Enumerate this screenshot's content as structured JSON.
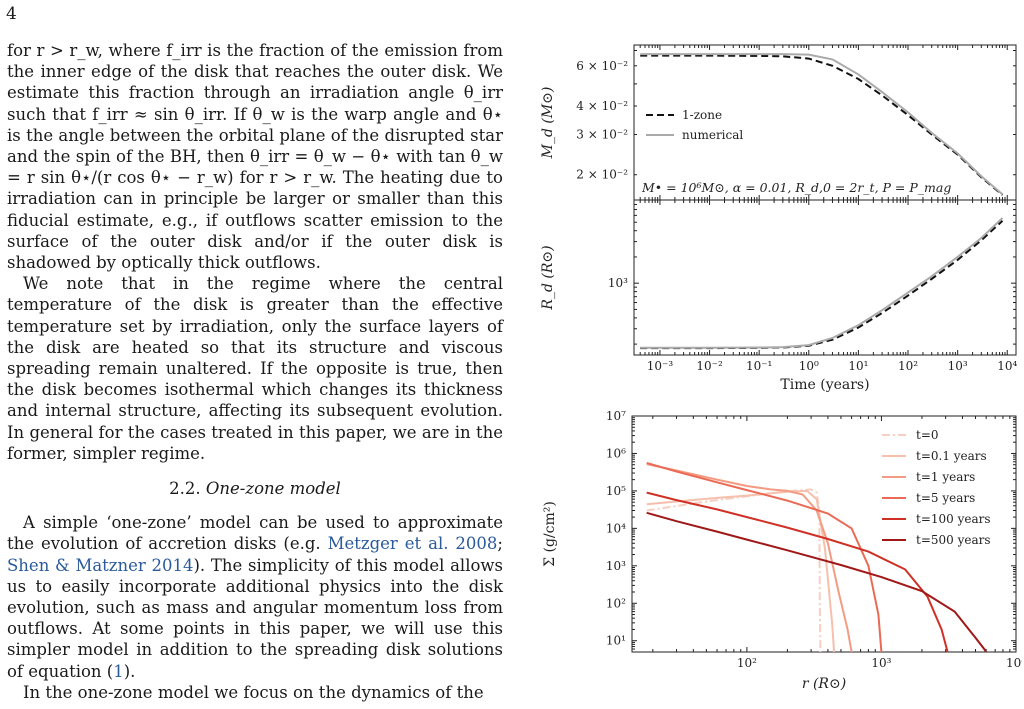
{
  "page_number": "4",
  "left_column": {
    "para1": "for r > r_w, where f_irr is the fraction of the emission from the inner edge of the disk that reaches the outer disk. We estimate this fraction through an irradiation angle θ_irr such that f_irr ≈ sin θ_irr. If θ_w is the warp angle and θ⋆ is the angle between the orbital plane of the disrupted star and the spin of the BH, then θ_irr = θ_w − θ⋆ with tan θ_w = r sin θ⋆/(r cos θ⋆ − r_w) for r > r_w. The heating due to irradiation can in principle be larger or smaller than this fiducial estimate, e.g., if outflows scatter emission to the surface of the outer disk and/or if the outer disk is shadowed by optically thick outflows.",
    "para2": "We note that in the regime where the central temperature of the disk is greater than the effective temperature set by irradiation, only the surface layers of the disk are heated so that its structure and viscous spreading remain unaltered. If the opposite is true, then the disk becomes isothermal which changes its thickness and internal structure, affecting its subsequent evolution. In general for the cases treated in this paper, we are in the former, simpler regime.",
    "section_number": "2.2.",
    "section_title": "One-zone model",
    "para3_start": "A simple ‘one-zone’ model can be used to approximate the evolution of accretion disks (e.g.",
    "cite1": "Metzger et al. 2008",
    "cite_sep": ";",
    "cite2": "Shen & Matzner 2014",
    "para3_mid": "). The simplicity of this model allows us to easily incorporate additional physics into the disk evolution, such as mass and angular momentum loss from outflows. At some points in this paper, we will use this simpler model in addition to the spreading disk solutions of equation (",
    "eq_ref": "1",
    "para3_end": ").",
    "para4": "In the one-zone model we focus on the dynamics of the"
  },
  "chart_data": [
    {
      "type": "line",
      "panel": "top",
      "ylabel": "M_d (M⊙)",
      "yscale": "log",
      "ylim": [
        0.0155,
        0.074
      ],
      "yticks": [
        "2 × 10⁻²",
        "3 × 10⁻²",
        "4 × 10⁻²",
        "6 × 10⁻²"
      ],
      "xscale": "log",
      "xlim": [
        0.0003,
        15000
      ],
      "legend": [
        "1-zone",
        "numerical"
      ],
      "legend_position": "center-left",
      "annotation": "M• = 10⁶M⊙, α = 0.01, R_d,0 = 2r_t, P = P_mag",
      "series": [
        {
          "name": "1-zone",
          "style": "dashed",
          "color": "#111111",
          "x": [
            0.0004,
            0.01,
            0.1,
            0.3,
            1,
            3,
            10,
            30,
            100,
            300,
            1000,
            3000,
            8000
          ],
          "y": [
            0.0665,
            0.0665,
            0.0663,
            0.066,
            0.0645,
            0.06,
            0.0525,
            0.0445,
            0.0365,
            0.03,
            0.0245,
            0.0195,
            0.0163
          ]
        },
        {
          "name": "numerical",
          "style": "solid",
          "color": "#aaaaaa",
          "x": [
            0.0004,
            0.01,
            0.1,
            0.3,
            1,
            3,
            10,
            30,
            100,
            300,
            1000,
            3000,
            8000
          ],
          "y": [
            0.0675,
            0.0675,
            0.0675,
            0.0675,
            0.0672,
            0.064,
            0.055,
            0.046,
            0.0375,
            0.0305,
            0.0248,
            0.0197,
            0.0164
          ]
        }
      ]
    },
    {
      "type": "line",
      "panel": "bottom",
      "ylabel": "R_d (R⊙)",
      "xlabel": "Time (years)",
      "yscale": "log",
      "ylim": [
        150,
        9000
      ],
      "yticks": [
        "10³"
      ],
      "xscale": "log",
      "xlim": [
        0.0003,
        15000
      ],
      "xticks": [
        "10⁻³",
        "10⁻²",
        "10⁻¹",
        "10⁰",
        "10¹",
        "10²",
        "10³",
        "10⁴"
      ],
      "series": [
        {
          "name": "1-zone",
          "style": "dashed",
          "color": "#111111",
          "x": [
            0.0004,
            0.01,
            0.1,
            0.3,
            1,
            3,
            10,
            30,
            100,
            300,
            1000,
            3000,
            8000
          ],
          "y": [
            180,
            180,
            181,
            183,
            192,
            225,
            310,
            455,
            720,
            1120,
            1850,
            3100,
            5200
          ]
        },
        {
          "name": "numerical",
          "style": "solid",
          "color": "#aaaaaa",
          "x": [
            0.0004,
            0.01,
            0.1,
            0.3,
            1,
            3,
            10,
            30,
            100,
            300,
            1000,
            3000,
            8000
          ],
          "y": [
            182,
            182,
            183,
            185,
            195,
            235,
            330,
            490,
            780,
            1200,
            2000,
            3300,
            5600
          ]
        }
      ]
    },
    {
      "type": "line",
      "panel": "sigma",
      "ylabel": "Σ (g/cm²)",
      "xlabel": "r (R⊙)",
      "xscale": "log",
      "yscale": "log",
      "xlim": [
        14,
        10000
      ],
      "ylim": [
        5,
        10000000
      ],
      "xticks": [
        "10²",
        "10³",
        "10⁴"
      ],
      "yticks": [
        "10¹",
        "10²",
        "10³",
        "10⁴",
        "10⁵",
        "10⁶",
        "10⁷"
      ],
      "legend_position": "upper-right",
      "series": [
        {
          "name": "t=0",
          "style": "dashdot",
          "color": "#f7cfc2",
          "x": [
            18,
            50,
            100,
            200,
            300,
            330,
            345,
            348,
            352
          ],
          "y": [
            30000,
            52000,
            72000,
            98000,
            110000,
            90000,
            30000,
            100,
            5
          ]
        },
        {
          "name": "t=0.1 years",
          "style": "solid",
          "color": "#f6c0ad",
          "x": [
            18,
            30,
            60,
            100,
            200,
            280,
            330,
            380,
            430,
            445
          ],
          "y": [
            44000,
            52000,
            65000,
            75000,
            95000,
            100000,
            60000,
            3000,
            30,
            5
          ]
        },
        {
          "name": "t=1 years",
          "style": "solid",
          "color": "#f39b83",
          "x": [
            18,
            30,
            60,
            100,
            150,
            200,
            260,
            330,
            400,
            480,
            560,
            600
          ],
          "y": [
            520000,
            350000,
            200000,
            135000,
            110000,
            100000,
            80000,
            30000,
            4000,
            200,
            20,
            5
          ]
        },
        {
          "name": "t=5 years",
          "style": "solid",
          "color": "#ea6b55",
          "x": [
            18,
            30,
            60,
            100,
            200,
            400,
            600,
            800,
            950,
            1000
          ],
          "y": [
            560000,
            330000,
            170000,
            105000,
            55000,
            25000,
            10000,
            1000,
            50,
            5
          ]
        },
        {
          "name": "t=100 years",
          "style": "solid",
          "color": "#cf3126",
          "x": [
            18,
            30,
            60,
            100,
            200,
            400,
            800,
            1500,
            2200,
            2800,
            3100
          ],
          "y": [
            90000,
            57000,
            32000,
            20000,
            10500,
            5200,
            2400,
            800,
            150,
            20,
            5
          ]
        },
        {
          "name": "t=500 years",
          "style": "solid",
          "color": "#a01818",
          "x": [
            18,
            30,
            60,
            100,
            200,
            500,
            1000,
            2000,
            3500,
            5000,
            5800,
            6000
          ],
          "y": [
            26000,
            15500,
            8200,
            5000,
            2600,
            1050,
            500,
            210,
            60,
            12,
            6,
            5
          ]
        }
      ]
    }
  ]
}
